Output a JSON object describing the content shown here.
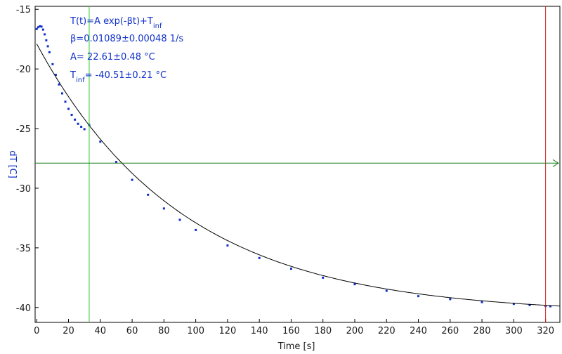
{
  "chart_data": {
    "type": "scatter",
    "xlabel": "Time [s]",
    "ylabel": "dT [C]",
    "xlim": [
      -1,
      329
    ],
    "ylim": [
      -41.25,
      -14.75
    ],
    "xticks": [
      0,
      20,
      40,
      60,
      80,
      100,
      120,
      140,
      160,
      180,
      200,
      220,
      240,
      260,
      280,
      300,
      320
    ],
    "yticks": [
      -15,
      -20,
      -25,
      -30,
      -35,
      -40
    ],
    "grid": false,
    "annotation": {
      "line1_main": "T(t)=A exp(-βt)+T",
      "line1_sub": "inf",
      "line2": "β=0.01089±0.00048 1/s",
      "line3": "A= 22.61±0.48 °C",
      "line4_main": "T",
      "line4_sub": "inf",
      "line4_rest": "= -40.51±0.21 °C"
    },
    "fit": {
      "A": 22.61,
      "beta": 0.01089,
      "T_inf": -40.51,
      "x_range": [
        0,
        329
      ]
    },
    "series": [
      {
        "color": "#1030c8",
        "x": [
          0,
          1,
          2,
          3,
          4,
          5,
          6,
          7,
          8,
          10,
          12,
          14,
          16,
          18,
          20,
          22,
          24,
          26,
          28,
          30,
          33,
          40,
          50,
          60,
          70,
          80,
          90,
          100,
          120,
          140,
          160,
          180,
          200,
          220,
          240,
          260,
          280,
          300,
          310,
          320,
          323
        ],
        "y": [
          -16.65,
          -16.5,
          -16.42,
          -16.45,
          -16.7,
          -17.1,
          -17.6,
          -18.1,
          -18.6,
          -19.6,
          -20.5,
          -21.3,
          -22.05,
          -22.75,
          -23.35,
          -23.85,
          -24.25,
          -24.6,
          -24.85,
          -25.05,
          -24.7,
          -26.1,
          -27.8,
          -29.3,
          -30.55,
          -31.7,
          -32.65,
          -33.5,
          -34.8,
          -35.85,
          -36.75,
          -37.5,
          -38.05,
          -38.6,
          -39.05,
          -39.3,
          -39.55,
          -39.7,
          -39.8,
          -39.88,
          -39.9
        ]
      }
    ],
    "cursors": {
      "vertical_green_x": 33,
      "vertical_red_x": 320,
      "horizontal_green_y": -27.9,
      "green_color": "#33cc33",
      "red_color": "#cc2222",
      "hline_color": "#1a7a1a"
    },
    "colors": {
      "data": "#1030c8",
      "fit": "#000000",
      "axis_label": "#1030c8",
      "text": "#1a1a1a"
    }
  }
}
